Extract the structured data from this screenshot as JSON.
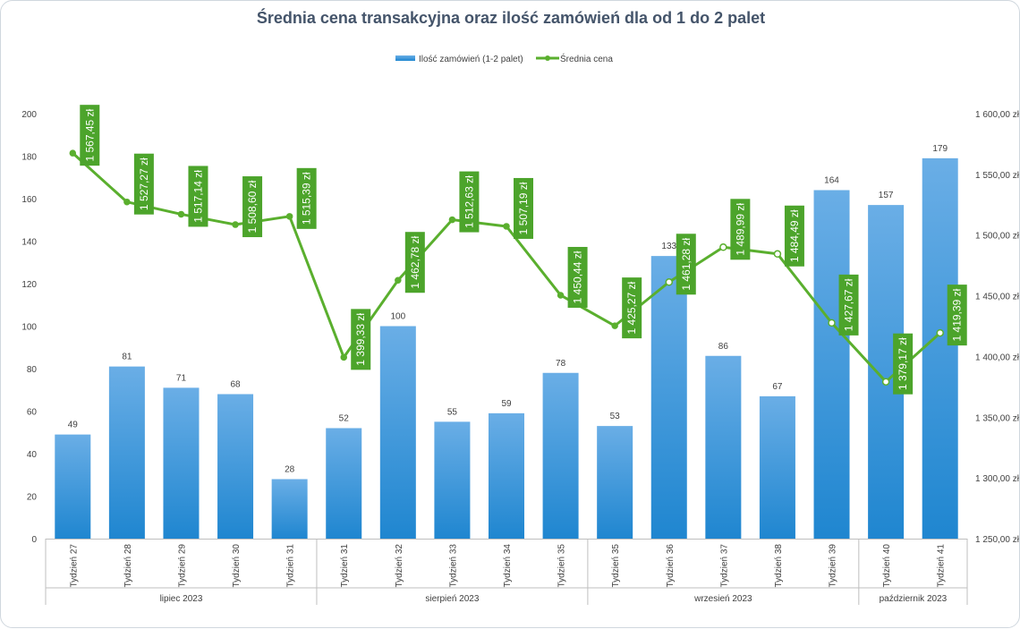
{
  "chart_data": {
    "type": "bar+line",
    "title": "Średnia cena transakcyjna oraz ilość zamówień dla od 1 do 2 palet",
    "legend": {
      "position": "top",
      "bar_series": "Ilość zamówień (1-2 palet)",
      "line_series": "Średnia cena"
    },
    "categories": [
      "Tydzień 27",
      "Tydzień 28",
      "Tydzień 29",
      "Tydzień 30",
      "Tydzień 31",
      "Tydzień 31",
      "Tydzień 32",
      "Tydzień 33",
      "Tydzień 34",
      "Tydzień 35",
      "Tydzień 35",
      "Tydzień 36",
      "Tydzień 37",
      "Tydzień 38",
      "Tydzień 39",
      "Tydzień 40",
      "Tydzień 41"
    ],
    "month_groups": [
      {
        "label": "lipiec 2023",
        "count": 5
      },
      {
        "label": "sierpień 2023",
        "count": 5
      },
      {
        "label": "wrzesień 2023",
        "count": 5
      },
      {
        "label": "październik 2023",
        "count": 2
      }
    ],
    "bar_values": [
      49,
      81,
      71,
      68,
      28,
      52,
      100,
      55,
      59,
      78,
      53,
      133,
      86,
      67,
      164,
      157,
      179
    ],
    "line_values": [
      1567.45,
      1527.27,
      1517.14,
      1508.6,
      1515.39,
      1399.33,
      1462.78,
      1512.63,
      1507.19,
      1450.44,
      1425.27,
      1461.28,
      1489.99,
      1484.49,
      1427.67,
      1379.17,
      1419.39
    ],
    "line_labels": [
      "1 567,45 zł",
      "1 527,27 zł",
      "1 517,14 zł",
      "1 508,60 zł",
      "1 515,39 zł",
      "1 399,33 zł",
      "1 462,78 zł",
      "1 512,63 zł",
      "1 507,19 zł",
      "1 450,44 zł",
      "1 425,27 zł",
      "1 461,28 zł",
      "1 489,99 zł",
      "1 484,49 zł",
      "1 427,67 zł",
      "1 379,17 zł",
      "1 419,39 zł"
    ],
    "y_left": {
      "min": 0,
      "max": 200,
      "ticks": [
        "0",
        "20",
        "40",
        "60",
        "80",
        "100",
        "120",
        "140",
        "160",
        "180",
        "200"
      ]
    },
    "y_right": {
      "min": 1250,
      "max": 1600,
      "ticks": [
        "1 250,00 zł",
        "1 300,00 zł",
        "1 350,00 zł",
        "1 400,00 zł",
        "1 450,00 zł",
        "1 500,00 zł",
        "1 550,00 zł",
        "1 600,00 zł"
      ]
    },
    "grid": false,
    "colors": {
      "bar_top": "#6aaee6",
      "bar_bottom": "#1f86d0",
      "line": "#5aaf2e",
      "label_box": "#4ca42b",
      "title": "#44546a",
      "axis": "#bfbfbf"
    }
  }
}
